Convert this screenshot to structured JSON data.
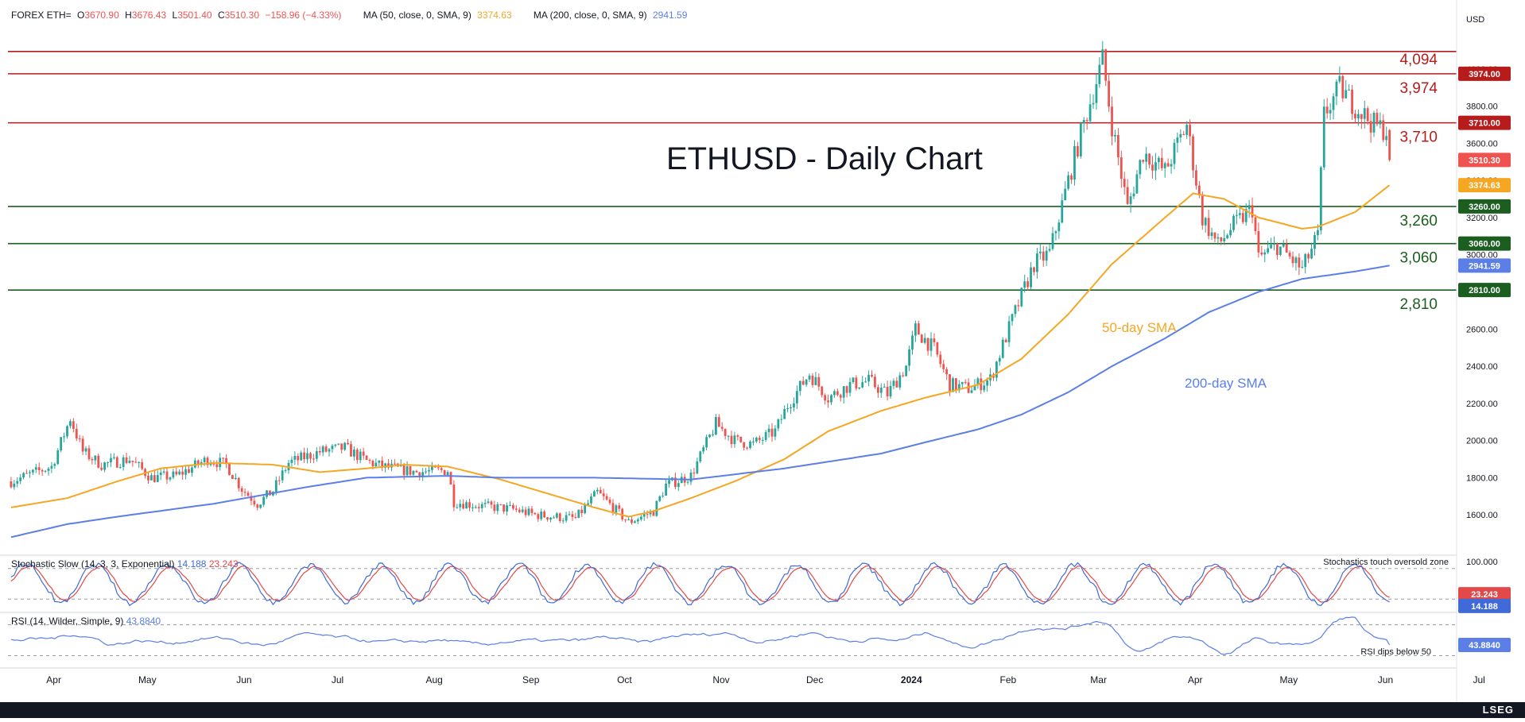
{
  "header": {
    "symbol": "FOREX ETH=",
    "open_label": "O",
    "open": "3670.90",
    "high_label": "H",
    "high": "3676.43",
    "low_label": "L",
    "low": "3501.40",
    "close_label": "C",
    "close": "3510.30",
    "change": "−158.96 (−4.33%)",
    "ma50_label": "MA (50, close, 0, SMA, 9)",
    "ma50_value": "3374.63",
    "ma200_label": "MA (200, close, 0, SMA, 9)",
    "ma200_value": "2941.59"
  },
  "currency": "USD",
  "footer_logo": "LSEG",
  "colors": {
    "up": "#26a69a",
    "down": "#ef5350",
    "sma50": "#f5a623",
    "sma200": "#5b7fe6",
    "resistance": "#b71c1c",
    "support": "#1b5e20",
    "stoch_k": "#3f6ad8",
    "stoch_d": "#e34948",
    "rsi": "#5b7fe6"
  },
  "chart_data": [
    {
      "type": "candlestick",
      "title": "ETHUSD - Daily Chart",
      "ylim": [
        1400,
        4200
      ],
      "y_ticks": [
        1600,
        1800,
        2000,
        2200,
        2400,
        2600,
        2800,
        3000,
        3200,
        3400,
        3600,
        3800,
        4000
      ],
      "y_tick_labels": [
        "1600.00",
        "1800.00",
        "2000.00",
        "2200.00",
        "2400.00",
        "2600.00",
        "2800.00",
        "3000.00",
        "3200.00",
        "3400.00",
        "3600.00",
        "3800.00",
        "4000.00"
      ],
      "x_months": [
        "Apr",
        "May",
        "Jun",
        "Jul",
        "Aug",
        "Sep",
        "Oct",
        "Nov",
        "Dec",
        "2024",
        "Feb",
        "Mar",
        "Apr",
        "May",
        "Jun",
        "Jul"
      ],
      "price_anchors": {
        "dates": [
          "2023-03-28",
          "2023-04-10",
          "2023-04-16",
          "2023-04-20",
          "2023-04-26",
          "2023-05-05",
          "2023-05-12",
          "2023-05-20",
          "2023-05-30",
          "2023-06-05",
          "2023-06-10",
          "2023-06-15",
          "2023-06-20",
          "2023-06-25",
          "2023-07-05",
          "2023-07-13",
          "2023-07-20",
          "2023-07-25",
          "2023-08-05",
          "2023-08-15",
          "2023-08-17",
          "2023-08-25",
          "2023-09-05",
          "2023-09-12",
          "2023-09-25",
          "2023-10-02",
          "2023-10-12",
          "2023-10-20",
          "2023-10-24",
          "2023-11-01",
          "2023-11-09",
          "2023-11-15",
          "2023-11-21",
          "2023-11-28",
          "2023-12-02",
          "2023-12-09",
          "2023-12-15",
          "2023-12-22",
          "2023-12-28",
          "2024-01-03",
          "2024-01-09",
          "2024-01-12",
          "2024-01-18",
          "2024-01-23",
          "2024-01-29",
          "2024-02-05",
          "2024-02-12",
          "2024-02-19",
          "2024-02-24",
          "2024-03-01",
          "2024-03-05",
          "2024-03-12",
          "2024-03-15",
          "2024-03-20",
          "2024-03-25",
          "2024-04-01",
          "2024-04-08",
          "2024-04-13",
          "2024-04-18",
          "2024-04-22",
          "2024-04-29",
          "2024-05-01",
          "2024-05-07",
          "2024-05-15",
          "2024-05-20",
          "2024-05-22",
          "2024-05-27",
          "2024-06-01",
          "2024-06-07",
          "2024-06-11",
          "2024-06-12"
        ],
        "closes": [
          1780,
          1860,
          2120,
          1940,
          1870,
          1900,
          1800,
          1810,
          1900,
          1870,
          1740,
          1660,
          1730,
          1880,
          1940,
          1960,
          1890,
          1860,
          1830,
          1840,
          1670,
          1650,
          1630,
          1600,
          1580,
          1720,
          1560,
          1620,
          1760,
          1810,
          2090,
          2000,
          1980,
          2050,
          2190,
          2360,
          2230,
          2300,
          2320,
          2250,
          2400,
          2600,
          2490,
          2300,
          2280,
          2330,
          2650,
          2950,
          3010,
          3400,
          3650,
          4050,
          3700,
          3250,
          3550,
          3450,
          3700,
          3200,
          3050,
          3140,
          3250,
          2980,
          3050,
          2920,
          3100,
          3750,
          3900,
          3800,
          3700,
          3670,
          3510
        ]
      },
      "sma50_anchors": {
        "dates": [
          "2023-03-28",
          "2023-04-15",
          "2023-05-01",
          "2023-05-15",
          "2023-06-01",
          "2023-06-20",
          "2023-07-05",
          "2023-07-20",
          "2023-08-01",
          "2023-08-15",
          "2023-09-01",
          "2023-09-15",
          "2023-10-01",
          "2023-10-12",
          "2023-10-20",
          "2023-11-01",
          "2023-11-15",
          "2023-12-01",
          "2023-12-15",
          "2024-01-01",
          "2024-01-15",
          "2024-02-01",
          "2024-02-15",
          "2024-03-01",
          "2024-03-15",
          "2024-04-01",
          "2024-04-10",
          "2024-04-20",
          "2024-05-01",
          "2024-05-15",
          "2024-05-20",
          "2024-06-01",
          "2024-06-12"
        ],
        "values": [
          1640,
          1690,
          1780,
          1850,
          1880,
          1870,
          1830,
          1850,
          1870,
          1860,
          1790,
          1720,
          1640,
          1590,
          1620,
          1690,
          1780,
          1900,
          2050,
          2160,
          2230,
          2300,
          2440,
          2680,
          2950,
          3200,
          3330,
          3300,
          3200,
          3140,
          3150,
          3230,
          3374.63
        ]
      },
      "sma200_anchors": {
        "dates": [
          "2023-03-28",
          "2023-04-15",
          "2023-05-01",
          "2023-06-01",
          "2023-07-01",
          "2023-07-20",
          "2023-08-15",
          "2023-09-01",
          "2023-10-01",
          "2023-11-01",
          "2023-12-01",
          "2024-01-01",
          "2024-01-15",
          "2024-02-01",
          "2024-02-15",
          "2024-03-01",
          "2024-03-15",
          "2024-04-01",
          "2024-04-15",
          "2024-05-01",
          "2024-05-15",
          "2024-06-01",
          "2024-06-12"
        ],
        "values": [
          1480,
          1550,
          1590,
          1660,
          1750,
          1800,
          1810,
          1800,
          1800,
          1790,
          1850,
          1930,
          1990,
          2060,
          2140,
          2260,
          2400,
          2550,
          2690,
          2800,
          2870,
          2910,
          2941.59
        ]
      },
      "horizontal_levels": [
        {
          "value": 4094,
          "label": "4,094",
          "color": "#b71c1c",
          "axis_label": ""
        },
        {
          "value": 3974,
          "label": "3,974",
          "color": "#b71c1c",
          "axis_label": "3974.00"
        },
        {
          "value": 3710,
          "label": "3,710",
          "color": "#b71c1c",
          "axis_label": "3710.00"
        },
        {
          "value": 3260,
          "label": "3,260",
          "color": "#1b5e20",
          "axis_label": "3260.00"
        },
        {
          "value": 3060,
          "label": "3,060",
          "color": "#1b5e20",
          "axis_label": "3060.00"
        },
        {
          "value": 2810,
          "label": "2,810",
          "color": "#1b5e20",
          "axis_label": "2810.00"
        }
      ],
      "price_tags": [
        {
          "value": 3510.3,
          "label": "3510.30",
          "color": "#ef5350"
        },
        {
          "value": 3374.63,
          "label": "3374.63",
          "color": "#f5a623"
        },
        {
          "value": 2941.59,
          "label": "2941.59",
          "color": "#5b7fe6"
        }
      ],
      "annotations": [
        {
          "text": "50-day SMA",
          "color": "#f5a623"
        },
        {
          "text": "200-day SMA",
          "color": "#5b7fe6"
        }
      ]
    },
    {
      "type": "line",
      "title": "Stochastic Slow (14, 3, 3, Exponential)",
      "k_value": "14.188",
      "d_value": "23.243",
      "ylim": [
        0,
        100
      ],
      "levels": [
        20,
        80
      ],
      "y_tick_labels": [
        "100.000"
      ],
      "annotation": "Stochastics touch oversold zone",
      "last_k": 14.188,
      "last_d": 23.243
    },
    {
      "type": "line",
      "title": "RSI (14, Wilder, Simple, 9)",
      "value": "43.8840",
      "ylim": [
        0,
        100
      ],
      "levels": [
        30,
        70
      ],
      "last": 43.884,
      "annotation": "RSI dips below 50"
    }
  ]
}
